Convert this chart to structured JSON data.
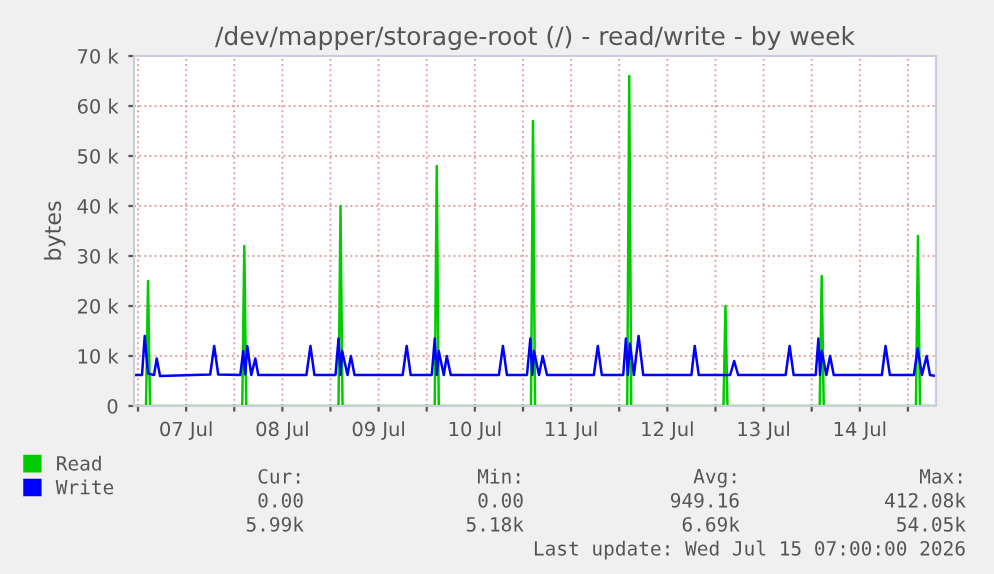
{
  "chart_data": {
    "type": "line",
    "title": "/dev/mapper/storage-root (/) - read/write - by week",
    "ylabel": "bytes",
    "xlim": [
      "2026-07-06T23:00",
      "2026-07-15T07:00"
    ],
    "xticks": [
      {
        "value": "2026-07-07T00:00",
        "label": null
      },
      {
        "value": "2026-07-07T12:00",
        "label": "07 Jul"
      },
      {
        "value": "2026-07-08T00:00",
        "label": null
      },
      {
        "value": "2026-07-08T12:00",
        "label": "08 Jul"
      },
      {
        "value": "2026-07-09T00:00",
        "label": null
      },
      {
        "value": "2026-07-09T12:00",
        "label": "09 Jul"
      },
      {
        "value": "2026-07-10T00:00",
        "label": null
      },
      {
        "value": "2026-07-10T12:00",
        "label": "10 Jul"
      },
      {
        "value": "2026-07-11T00:00",
        "label": null
      },
      {
        "value": "2026-07-11T12:00",
        "label": "11 Jul"
      },
      {
        "value": "2026-07-12T00:00",
        "label": null
      },
      {
        "value": "2026-07-12T12:00",
        "label": "12 Jul"
      },
      {
        "value": "2026-07-13T00:00",
        "label": null
      },
      {
        "value": "2026-07-13T12:00",
        "label": "13 Jul"
      },
      {
        "value": "2026-07-14T00:00",
        "label": null
      },
      {
        "value": "2026-07-14T12:00",
        "label": "14 Jul"
      },
      {
        "value": "2026-07-15T00:00",
        "label": null
      }
    ],
    "ylim": [
      0,
      70000
    ],
    "yticks": [
      0,
      {
        "value": 10000,
        "label": "10 k"
      },
      {
        "value": 20000,
        "label": "20 k"
      },
      {
        "value": 30000,
        "label": "30 k"
      },
      {
        "value": 40000,
        "label": "40 k"
      },
      {
        "value": 50000,
        "label": "50 k"
      },
      {
        "value": 60000,
        "label": "60 k"
      },
      {
        "value": 70000,
        "label": "70 k"
      }
    ],
    "grid": true,
    "legend": "bottom left",
    "series": [
      {
        "name": "Read",
        "color": "#00cc00",
        "x": [
          "2026-07-06T23:00",
          "2026-07-07T02:00",
          "2026-07-07T02:30",
          "2026-07-07T03:00",
          "2026-07-08T02:00",
          "2026-07-08T02:30",
          "2026-07-08T03:00",
          "2026-07-09T02:00",
          "2026-07-09T02:30",
          "2026-07-09T03:00",
          "2026-07-10T02:00",
          "2026-07-10T02:30",
          "2026-07-10T03:00",
          "2026-07-11T02:00",
          "2026-07-11T02:30",
          "2026-07-11T03:00",
          "2026-07-12T02:00",
          "2026-07-12T02:30",
          "2026-07-12T03:00",
          "2026-07-13T02:00",
          "2026-07-13T02:30",
          "2026-07-13T03:00",
          "2026-07-14T02:00",
          "2026-07-14T02:30",
          "2026-07-14T03:00",
          "2026-07-15T02:00",
          "2026-07-15T02:30",
          "2026-07-15T03:00",
          "2026-07-15T07:00"
        ],
        "values": [
          0,
          0,
          25000,
          0,
          0,
          32000,
          0,
          0,
          40000,
          0,
          0,
          48000,
          0,
          0,
          57000,
          0,
          0,
          66000,
          0,
          0,
          20000,
          0,
          0,
          26000,
          0,
          0,
          34000,
          0,
          0
        ]
      },
      {
        "name": "Write",
        "color": "#0000ff",
        "x": [
          "2026-07-06T23:00",
          "2026-07-07T01:00",
          "2026-07-07T01:40",
          "2026-07-07T02:30",
          "2026-07-07T04:00",
          "2026-07-07T04:40",
          "2026-07-07T05:30",
          "2026-07-07T18:00",
          "2026-07-07T19:00",
          "2026-07-07T20:00",
          "2026-07-08T01:30",
          "2026-07-08T02:15",
          "2026-07-08T02:45",
          "2026-07-08T03:15",
          "2026-07-08T04:15",
          "2026-07-08T05:15",
          "2026-07-08T06:00",
          "2026-07-08T18:00",
          "2026-07-08T19:00",
          "2026-07-08T20:00",
          "2026-07-09T01:15",
          "2026-07-09T02:00",
          "2026-07-09T02:30",
          "2026-07-09T02:55",
          "2026-07-09T04:15",
          "2026-07-09T05:05",
          "2026-07-09T06:00",
          "2026-07-09T18:00",
          "2026-07-09T19:00",
          "2026-07-09T20:00",
          "2026-07-10T01:15",
          "2026-07-10T02:00",
          "2026-07-10T02:30",
          "2026-07-10T03:00",
          "2026-07-10T04:15",
          "2026-07-10T05:00",
          "2026-07-10T06:00",
          "2026-07-10T18:00",
          "2026-07-10T19:00",
          "2026-07-10T20:00",
          "2026-07-11T01:00",
          "2026-07-11T01:50",
          "2026-07-11T02:20",
          "2026-07-11T02:45",
          "2026-07-11T04:00",
          "2026-07-11T04:55",
          "2026-07-11T06:00",
          "2026-07-11T17:40",
          "2026-07-11T18:40",
          "2026-07-11T19:40",
          "2026-07-12T01:00",
          "2026-07-12T01:40",
          "2026-07-12T02:10",
          "2026-07-12T02:40",
          "2026-07-12T03:40",
          "2026-07-12T04:50",
          "2026-07-12T06:00",
          "2026-07-12T18:00",
          "2026-07-12T18:50",
          "2026-07-12T19:50",
          "2026-07-13T03:40",
          "2026-07-13T04:40",
          "2026-07-13T05:40",
          "2026-07-13T17:30",
          "2026-07-13T18:30",
          "2026-07-13T19:30",
          "2026-07-14T01:00",
          "2026-07-14T01:40",
          "2026-07-14T02:05",
          "2026-07-14T02:30",
          "2026-07-14T03:40",
          "2026-07-14T04:35",
          "2026-07-14T05:30",
          "2026-07-14T17:30",
          "2026-07-14T18:25",
          "2026-07-14T19:30",
          "2026-07-15T01:30",
          "2026-07-15T02:25",
          "2026-07-15T03:30",
          "2026-07-15T04:40",
          "2026-07-15T05:30",
          "2026-07-15T07:00"
        ],
        "values": [
          6200,
          6200,
          14000,
          6500,
          6200,
          9500,
          6000,
          6300,
          12000,
          6300,
          6200,
          11000,
          6300,
          12000,
          6200,
          9500,
          6200,
          6200,
          12000,
          6200,
          6200,
          13500,
          6200,
          11000,
          6200,
          10000,
          6200,
          6200,
          12000,
          6200,
          6200,
          13500,
          6200,
          11000,
          6200,
          10000,
          6200,
          6200,
          12000,
          6200,
          6200,
          13500,
          6200,
          11000,
          6200,
          10000,
          6200,
          6200,
          12000,
          6200,
          6200,
          13500,
          6200,
          12500,
          6200,
          14000,
          6200,
          6200,
          12000,
          6200,
          6200,
          9000,
          6200,
          6200,
          12000,
          6200,
          6200,
          13500,
          6200,
          11000,
          6200,
          10000,
          6200,
          6200,
          12000,
          6200,
          6200,
          11500,
          6200,
          10000,
          6200,
          6000
        ]
      }
    ],
    "annotations": [
      "Cur:",
      "Min:",
      "Avg:",
      "Max:",
      "0.00",
      "0.00",
      "949.16",
      "412.08k",
      "5.99k",
      "5.18k",
      "6.69k",
      "54.05k",
      "Last update: Wed Jul 15 07:00:00 2026"
    ]
  }
}
